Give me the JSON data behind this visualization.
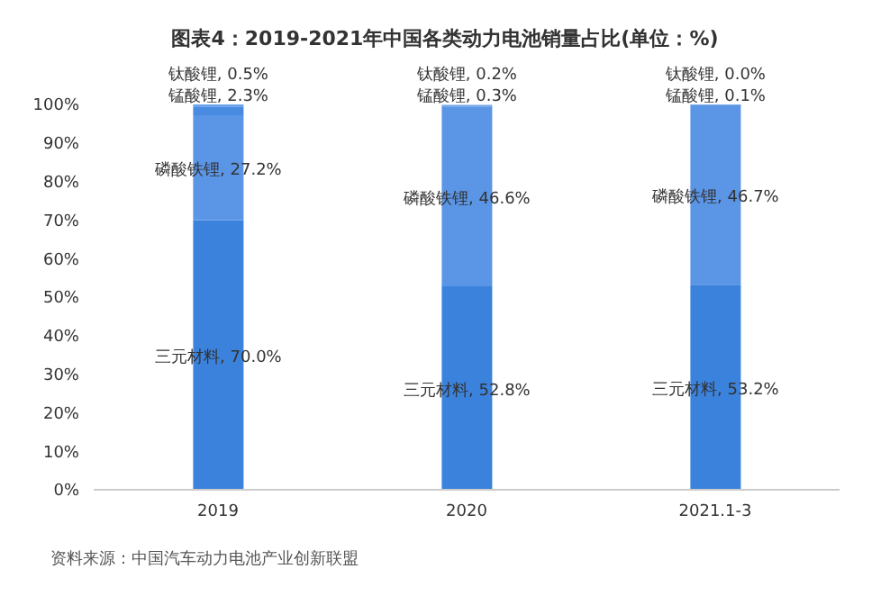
{
  "chart_data": {
    "type": "bar",
    "title": "图表4：2019-2021年中国各类动力电池销量占比(单位：%)",
    "categories": [
      "2019",
      "2020",
      "2021.1-3"
    ],
    "stacked": true,
    "series": [
      {
        "color": "#3b82dc",
        "values": [
          70.0,
          52.8,
          53.2
        ],
        "value_labels": [
          "三元材料, 70.0%",
          "三元材料, 52.8%",
          "三元材料, 53.2%"
        ]
      },
      {
        "color": "#5b95e6",
        "values": [
          27.2,
          46.6,
          46.7
        ],
        "value_labels": [
          "磷酸铁锂, 27.2%",
          "磷酸铁锂, 46.6%",
          "磷酸铁锂, 46.7%"
        ]
      },
      {
        "color": "#4a8be2",
        "values": [
          2.3,
          0.3,
          0.1
        ],
        "value_labels": [
          "锰酸锂, 2.3%",
          "锰酸锂, 0.3%",
          "锰酸锂, 0.1%"
        ]
      },
      {
        "color": "#6aa2ec",
        "values": [
          0.5,
          0.2,
          0.0
        ],
        "value_labels": [
          "钛酸锂, 0.5%",
          "钛酸锂, 0.2%",
          "钛酸锂, 0.0%"
        ]
      }
    ],
    "ylim": [
      0,
      100
    ],
    "yticks": [
      {
        "value": 0,
        "label": "0%"
      },
      {
        "value": 10,
        "label": "10%"
      },
      {
        "value": 20,
        "label": "20%"
      },
      {
        "value": 30,
        "label": "30%"
      },
      {
        "value": 40,
        "label": "40%"
      },
      {
        "value": 50,
        "label": "50%"
      },
      {
        "value": 60,
        "label": "60%"
      },
      {
        "value": 70,
        "label": "70%"
      },
      {
        "value": 80,
        "label": "80%"
      },
      {
        "value": 90,
        "label": "90%"
      },
      {
        "value": 100,
        "label": "100%"
      }
    ],
    "grid": false,
    "legend": false,
    "annotations": [
      "资料来源：中国汽车动力电池产业创新联盟"
    ]
  }
}
